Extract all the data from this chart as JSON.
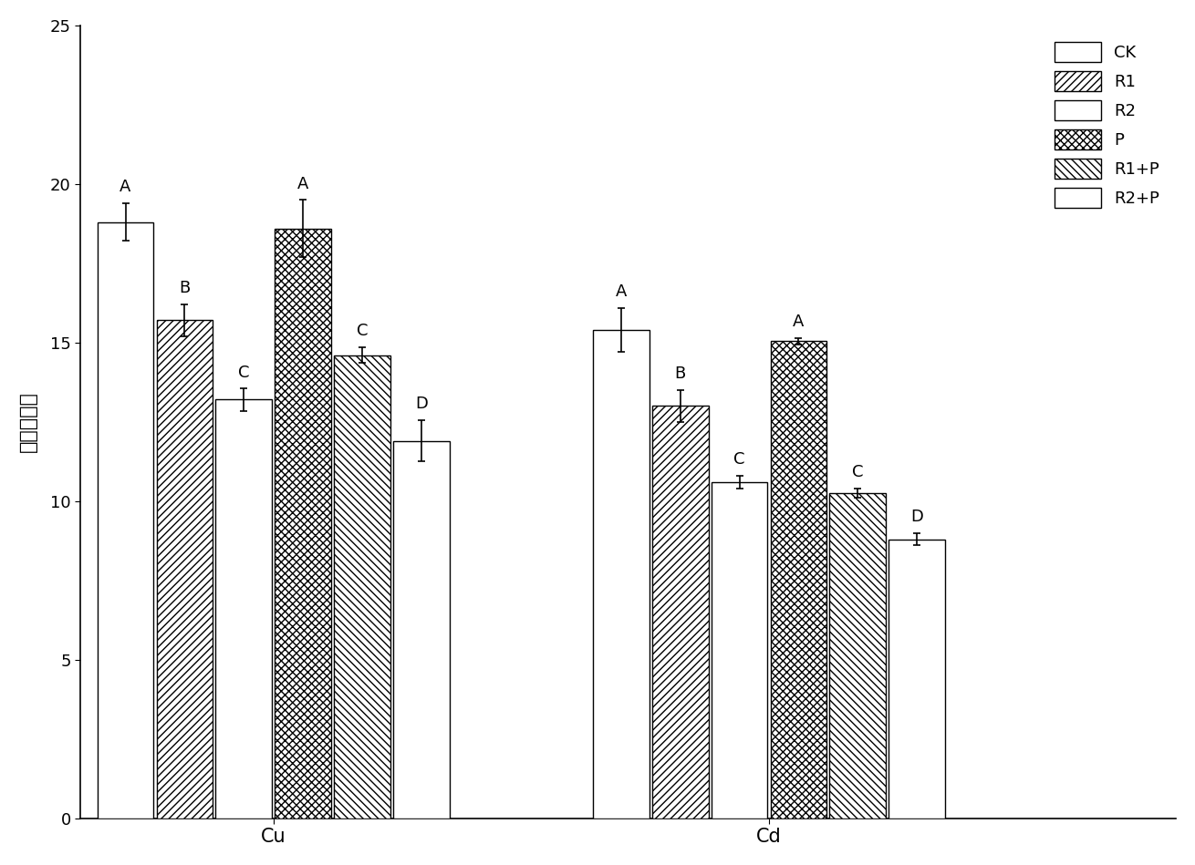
{
  "groups": [
    "Cu",
    "Cd"
  ],
  "series": [
    "CK",
    "R1",
    "R2",
    "P",
    "R1+P",
    "R2+P"
  ],
  "values": {
    "Cu": [
      18.8,
      15.7,
      13.2,
      18.6,
      14.6,
      11.9
    ],
    "Cd": [
      15.4,
      13.0,
      10.6,
      15.05,
      10.25,
      8.8
    ]
  },
  "errors": {
    "Cu": [
      0.6,
      0.5,
      0.35,
      0.9,
      0.25,
      0.65
    ],
    "Cd": [
      0.7,
      0.5,
      0.2,
      0.1,
      0.15,
      0.2
    ]
  },
  "significance": {
    "Cu": [
      "A",
      "B",
      "C",
      "A",
      "C",
      "D"
    ],
    "Cd": [
      "A",
      "B",
      "C",
      "A",
      "C",
      "D"
    ]
  },
  "ylabel": "重金属含量",
  "ylim": [
    0,
    25
  ],
  "yticks": [
    0,
    5,
    10,
    15,
    20,
    25
  ],
  "bar_width": 0.1,
  "legend_labels": [
    "CK",
    "R1",
    "R2",
    "P",
    "R1+P",
    "R2+P"
  ],
  "sig_fontsize": 13,
  "axis_fontsize": 14,
  "tick_fontsize": 13,
  "legend_fontsize": 13
}
